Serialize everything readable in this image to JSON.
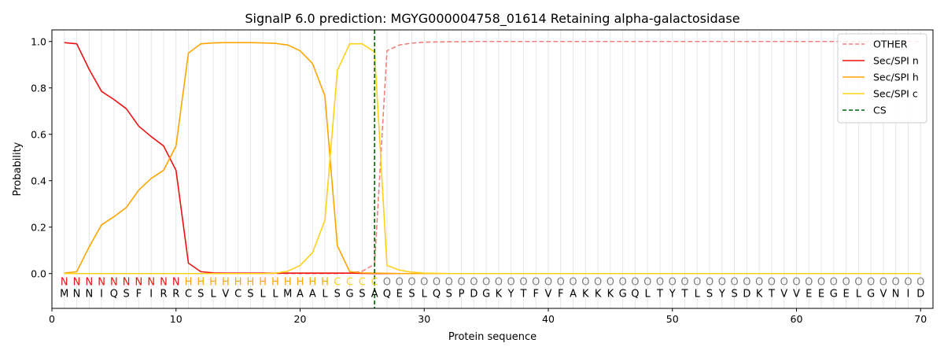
{
  "chart_data": {
    "type": "line",
    "title": "SignalP 6.0 prediction: MGYG000004758_01614 Retaining alpha-galactosidase",
    "xlabel": "Protein sequence",
    "ylabel": "Probability",
    "xlim": [
      0,
      71
    ],
    "ylim": [
      -0.15,
      1.05
    ],
    "xticks": [
      0,
      10,
      20,
      30,
      40,
      50,
      60,
      70
    ],
    "yticks": [
      0.0,
      0.2,
      0.4,
      0.6,
      0.8,
      1.0
    ],
    "ytick_labels": [
      "0.0",
      "0.2",
      "0.4",
      "0.6",
      "0.8",
      "1.0"
    ],
    "legend": {
      "position": "top-right"
    },
    "x": [
      1,
      2,
      3,
      4,
      5,
      6,
      7,
      8,
      9,
      10,
      11,
      12,
      13,
      14,
      15,
      16,
      17,
      18,
      19,
      20,
      21,
      22,
      23,
      24,
      25,
      26,
      27,
      28,
      29,
      30,
      31,
      32,
      33,
      34,
      35,
      36,
      37,
      38,
      39,
      40,
      41,
      42,
      43,
      44,
      45,
      46,
      47,
      48,
      49,
      50,
      51,
      52,
      53,
      54,
      55,
      56,
      57,
      58,
      59,
      60,
      61,
      62,
      63,
      64,
      65,
      66,
      67,
      68,
      69,
      70
    ],
    "series": [
      {
        "name": "OTHER",
        "color": "#f08080",
        "dash": true,
        "values": [
          0,
          0,
          0,
          0,
          0,
          0,
          0,
          0,
          0,
          0,
          0,
          0,
          0,
          0,
          0,
          0,
          0,
          0,
          0,
          0,
          0,
          0,
          0,
          0.002,
          0.01,
          0.04,
          0.96,
          0.985,
          0.993,
          0.997,
          0.998,
          0.999,
          0.999,
          1,
          1,
          1,
          1,
          1,
          1,
          1,
          1,
          1,
          1,
          1,
          1,
          1,
          1,
          1,
          1,
          1,
          1,
          1,
          1,
          1,
          1,
          1,
          1,
          1,
          1,
          1,
          1,
          1,
          1,
          1,
          1,
          1,
          1,
          1,
          1,
          1
        ]
      },
      {
        "name": "Sec/SPI n",
        "color": "#ee1111",
        "dash": false,
        "values": [
          0.995,
          0.99,
          0.88,
          0.785,
          0.75,
          0.71,
          0.635,
          0.59,
          0.55,
          0.445,
          0.045,
          0.008,
          0.003,
          0.002,
          0.002,
          0.002,
          0.002,
          0.002,
          0.002,
          0.002,
          0.002,
          0.002,
          0.002,
          0.002,
          0.001,
          0,
          0,
          0,
          0,
          0,
          0,
          0,
          0,
          0,
          0,
          0,
          0,
          0,
          0,
          0,
          0,
          0,
          0,
          0,
          0,
          0,
          0,
          0,
          0,
          0,
          0,
          0,
          0,
          0,
          0,
          0,
          0,
          0,
          0,
          0,
          0,
          0,
          0,
          0,
          0,
          0,
          0,
          0,
          0,
          0
        ]
      },
      {
        "name": "Sec/SPI h",
        "color": "#ffa500",
        "dash": false,
        "values": [
          0.002,
          0.008,
          0.115,
          0.21,
          0.245,
          0.285,
          0.36,
          0.41,
          0.445,
          0.55,
          0.95,
          0.99,
          0.994,
          0.995,
          0.995,
          0.995,
          0.994,
          0.992,
          0.985,
          0.96,
          0.905,
          0.765,
          0.12,
          0.008,
          0.003,
          0.002,
          0.001,
          0,
          0,
          0,
          0,
          0,
          0,
          0,
          0,
          0,
          0,
          0,
          0,
          0,
          0,
          0,
          0,
          0,
          0,
          0,
          0,
          0,
          0,
          0,
          0,
          0,
          0,
          0,
          0,
          0,
          0,
          0,
          0,
          0,
          0,
          0,
          0,
          0,
          0,
          0,
          0,
          0,
          0,
          0
        ]
      },
      {
        "name": "Sec/SPI c",
        "color": "#ffd21a",
        "dash": false,
        "values": [
          0,
          0,
          0,
          0,
          0,
          0,
          0,
          0,
          0,
          0,
          0,
          0,
          0,
          0,
          0,
          0,
          0,
          0.002,
          0.01,
          0.035,
          0.09,
          0.23,
          0.875,
          0.99,
          0.99,
          0.955,
          0.035,
          0.015,
          0.006,
          0.002,
          0.001,
          0,
          0,
          0,
          0,
          0,
          0,
          0,
          0,
          0,
          0,
          0,
          0,
          0,
          0,
          0,
          0,
          0,
          0,
          0,
          0,
          0,
          0,
          0,
          0,
          0,
          0,
          0,
          0,
          0,
          0,
          0,
          0,
          0,
          0,
          0,
          0,
          0,
          0,
          0
        ]
      }
    ],
    "cleavage_site": {
      "name": "CS",
      "x": 26,
      "color": "#006400"
    },
    "sequence": [
      "M",
      "N",
      "N",
      "I",
      "Q",
      "S",
      "F",
      "I",
      "R",
      "R",
      "C",
      "S",
      "L",
      "V",
      "C",
      "S",
      "L",
      "L",
      "M",
      "A",
      "A",
      "L",
      "S",
      "G",
      "S",
      "A",
      "Q",
      "E",
      "S",
      "L",
      "Q",
      "S",
      "P",
      "D",
      "G",
      "K",
      "Y",
      "T",
      "F",
      "V",
      "F",
      "A",
      "K",
      "K",
      "K",
      "G",
      "Q",
      "L",
      "T",
      "Y",
      "T",
      "L",
      "S",
      "Y",
      "S",
      "D",
      "K",
      "T",
      "V",
      "V",
      "E",
      "E",
      "G",
      "E",
      "L",
      "G",
      "V",
      "N",
      "I",
      "D"
    ],
    "labels": [
      "N",
      "N",
      "N",
      "N",
      "N",
      "N",
      "N",
      "N",
      "N",
      "N",
      "H",
      "H",
      "H",
      "H",
      "H",
      "H",
      "H",
      "H",
      "H",
      "H",
      "H",
      "H",
      "C",
      "C",
      "C",
      "C",
      "O",
      "O",
      "O",
      "O",
      "O",
      "O",
      "O",
      "O",
      "O",
      "O",
      "O",
      "O",
      "O",
      "O",
      "O",
      "O",
      "O",
      "O",
      "O",
      "O",
      "O",
      "O",
      "O",
      "O",
      "O",
      "O",
      "O",
      "O",
      "O",
      "O",
      "O",
      "O",
      "O",
      "O",
      "O",
      "O",
      "O",
      "O",
      "O",
      "O",
      "O",
      "O",
      "O",
      "O"
    ],
    "label_colors": {
      "N": "#ee1111",
      "H": "#ffa500",
      "C": "#ffd21a",
      "O": "#808080"
    }
  }
}
